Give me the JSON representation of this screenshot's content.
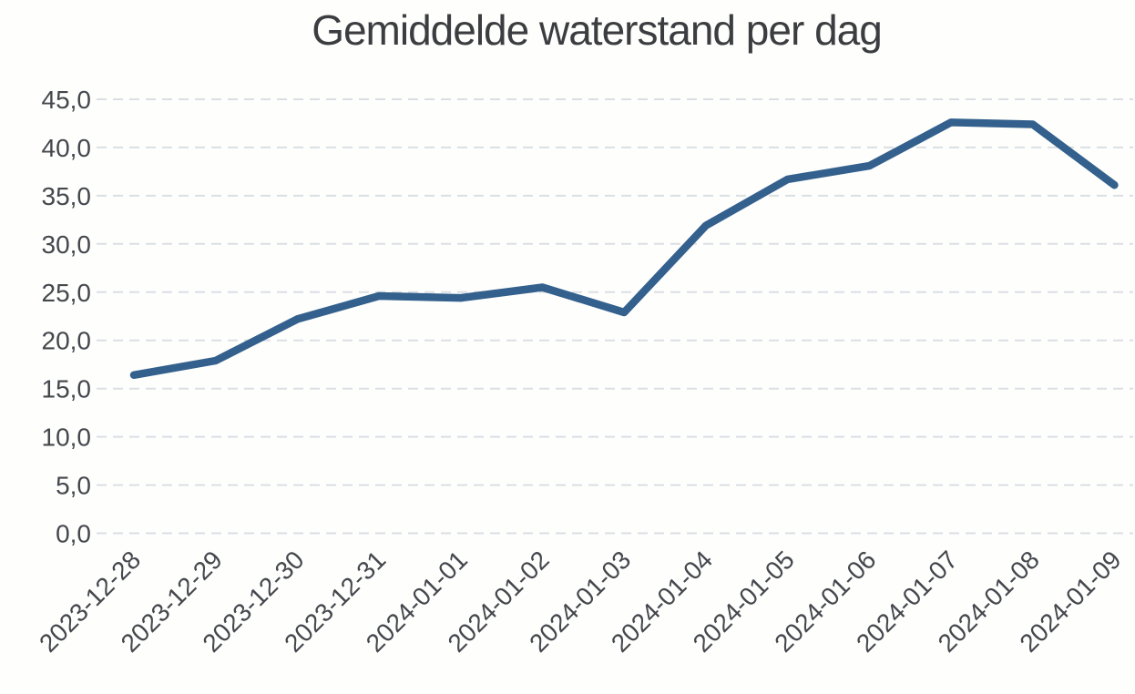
{
  "chart_data": {
    "type": "line",
    "title": "Gemiddelde waterstand per dag",
    "xlabel": "",
    "ylabel": "",
    "x": [
      "2023-12-28",
      "2023-12-29",
      "2023-12-30",
      "2023-12-31",
      "2024-01-01",
      "2024-01-02",
      "2024-01-03",
      "2024-01-04",
      "2024-01-05",
      "2024-01-06",
      "2024-01-07",
      "2024-01-08",
      "2024-01-09"
    ],
    "series": [
      {
        "name": "Gemiddelde waterstand",
        "values": [
          16.4,
          17.9,
          22.2,
          24.6,
          24.4,
          25.5,
          22.9,
          31.9,
          36.7,
          38.1,
          42.6,
          42.4,
          36.1
        ]
      }
    ],
    "ylim": [
      0,
      45
    ],
    "ytick_step": 5,
    "yticks": [
      {
        "value": 45,
        "label": "45,0"
      },
      {
        "value": 40,
        "label": "40,0"
      },
      {
        "value": 35,
        "label": "35,0"
      },
      {
        "value": 30,
        "label": "30,0"
      },
      {
        "value": 25,
        "label": "25,0"
      },
      {
        "value": 20,
        "label": "20,0"
      },
      {
        "value": 15,
        "label": "15,0"
      },
      {
        "value": 10,
        "label": "10,0"
      },
      {
        "value": 5,
        "label": "5,0"
      },
      {
        "value": 0,
        "label": "0,0"
      }
    ],
    "grid": true,
    "legend": "none",
    "x_label_rotation_deg": 45,
    "colors": {
      "line": "#33608c",
      "title_text": "#3c3d40",
      "axis_text": "#44474c",
      "grid": "#d7dce1",
      "background": "#fefefd"
    }
  }
}
